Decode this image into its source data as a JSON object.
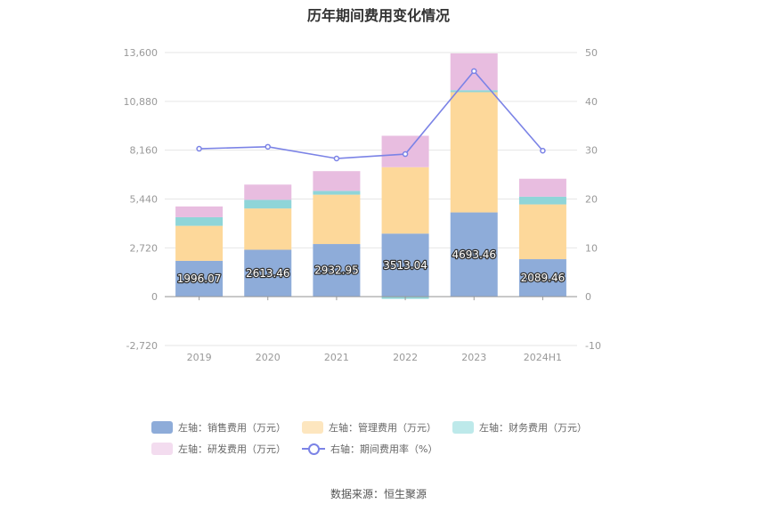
{
  "chart_data": {
    "type": "bar",
    "stacked": true,
    "title": "历年期间费用变化情况",
    "categories": [
      "2019",
      "2020",
      "2021",
      "2022",
      "2023",
      "2024H1"
    ],
    "y_left": {
      "ticks": [
        "13,600",
        "10,880",
        "8,160",
        "5,440",
        "2,720",
        "0",
        "-2,720"
      ],
      "ylim": [
        -2720,
        13600
      ]
    },
    "y_right": {
      "ticks": [
        "50",
        "40",
        "30",
        "20",
        "10",
        "0",
        "-10"
      ],
      "ylim": [
        -10,
        50
      ]
    },
    "grid": true,
    "legend_position": "bottom",
    "series": [
      {
        "name": "左轴：销售费用（万元）",
        "axis": "left",
        "color": "#8eacd9",
        "values": [
          1996.07,
          2613.46,
          2932.95,
          3513.04,
          4693.46,
          2089.46
        ],
        "labels": [
          "1996.07",
          "2613.46",
          "2932.95",
          "3513.04",
          "4693.46",
          "2089.46"
        ]
      },
      {
        "name": "左轴：管理费用（万元）",
        "axis": "left",
        "color": "#fdd89a",
        "values": [
          1950,
          2300,
          2750,
          3700,
          6700,
          3050
        ]
      },
      {
        "name": "左轴：财务费用（万元）",
        "axis": "left",
        "color": "#8fd5d8",
        "values": [
          480,
          480,
          210,
          -120,
          110,
          430
        ]
      },
      {
        "name": "左轴：研发费用（万元）",
        "axis": "left",
        "color": "#e8bde0",
        "values": [
          600,
          850,
          1100,
          1750,
          2050,
          1000
        ]
      },
      {
        "name": "右轴：期间费用率（%）",
        "axis": "right",
        "type": "line",
        "color": "#7b83e6",
        "values": [
          30.3,
          30.7,
          28.3,
          29.2,
          46.2,
          29.9
        ]
      }
    ],
    "legend": [
      {
        "label": "左轴：销售费用（万元）",
        "kind": "box",
        "color": "#8eacd9"
      },
      {
        "label": "左轴：管理费用（万元）",
        "kind": "box",
        "color": "#fde6bf"
      },
      {
        "label": "左轴：财务费用（万元）",
        "kind": "box",
        "color": "#bde9ea"
      },
      {
        "label": "左轴：研发费用（万元）",
        "kind": "box",
        "color": "#f3dcef"
      },
      {
        "label": "右轴：期间费用率（%）",
        "kind": "line",
        "color": "#7b83e6"
      }
    ]
  },
  "source": "数据来源：恒生聚源"
}
